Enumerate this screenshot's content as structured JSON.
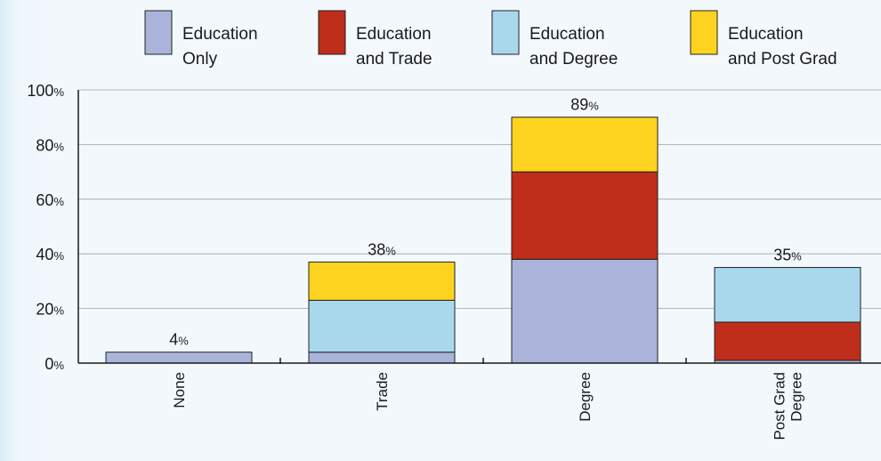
{
  "chart_data": {
    "type": "bar",
    "stacked": true,
    "categories": [
      {
        "lines": [
          "None"
        ]
      },
      {
        "lines": [
          "Trade"
        ]
      },
      {
        "lines": [
          "Degree"
        ]
      },
      {
        "lines": [
          "Post Grad",
          "Degree"
        ]
      }
    ],
    "series": [
      {
        "name_lines": [
          "Education",
          "Only"
        ],
        "color": "#aab4da",
        "values": [
          4,
          4,
          38,
          1
        ]
      },
      {
        "name_lines": [
          "Education",
          "and Trade"
        ],
        "color": "#bf2e1a",
        "values": [
          0,
          0,
          32,
          14
        ]
      },
      {
        "name_lines": [
          "Education",
          "and Degree"
        ],
        "color": "#a9d8ed",
        "values": [
          0,
          19,
          0,
          20
        ]
      },
      {
        "name_lines": [
          "Education",
          "and Post Grad"
        ],
        "color": "#fdd31f",
        "values": [
          0,
          14,
          20,
          0
        ]
      }
    ],
    "totals": [
      {
        "number": "4",
        "unit": "%"
      },
      {
        "number": "38",
        "unit": "%"
      },
      {
        "number": "89",
        "unit": "%"
      },
      {
        "number": "35",
        "unit": "%"
      }
    ],
    "y_ticks": [
      {
        "value": 0,
        "number": "0",
        "unit": "%"
      },
      {
        "value": 20,
        "number": "20",
        "unit": "%"
      },
      {
        "value": 40,
        "number": "40",
        "unit": "%"
      },
      {
        "value": 60,
        "number": "60",
        "unit": "%"
      },
      {
        "value": 80,
        "number": "80",
        "unit": "%"
      },
      {
        "value": 100,
        "number": "100",
        "unit": "%"
      }
    ],
    "ylim": [
      0,
      100
    ],
    "grid": true,
    "legend_position": "top",
    "title": "",
    "xlabel": "",
    "ylabel": ""
  }
}
